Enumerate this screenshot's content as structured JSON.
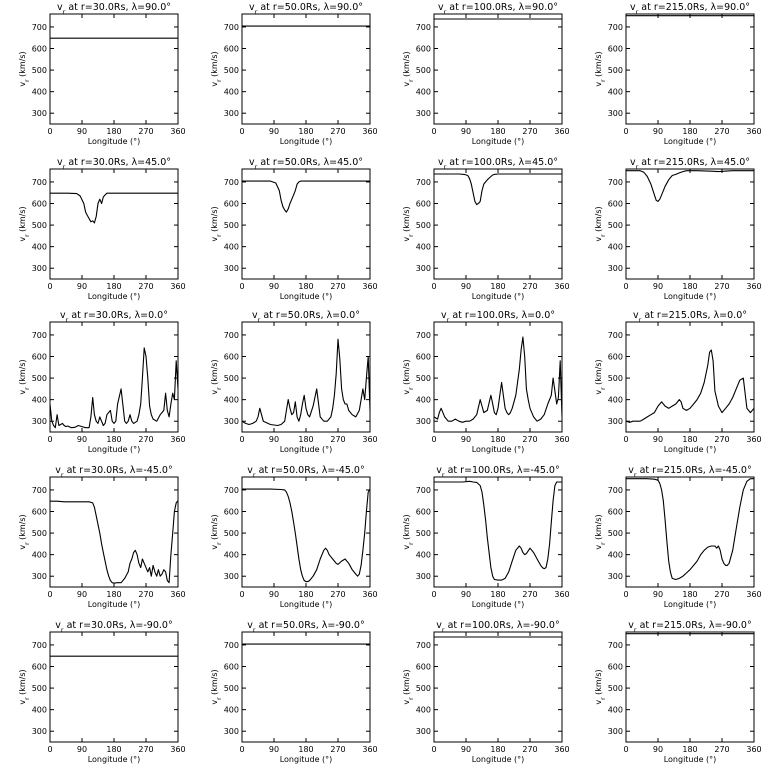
{
  "chart_data": [
    {
      "type": "line",
      "title": "v_r at r=30.0Rs, λ=90.0°",
      "r": "30.0",
      "lat": "90.0",
      "xlabel": "Longitude (°)",
      "ylabel": "v_r (km/s)",
      "xlim": [
        0,
        360
      ],
      "ylim": [
        250,
        760
      ],
      "x": [
        0,
        360
      ],
      "y": [
        648,
        648
      ]
    },
    {
      "type": "line",
      "title": "v_r at r=50.0Rs, λ=90.0°",
      "r": "50.0",
      "lat": "90.0",
      "xlabel": "Longitude (°)",
      "ylabel": "v_r (km/s)",
      "xlim": [
        0,
        360
      ],
      "ylim": [
        250,
        760
      ],
      "x": [
        0,
        360
      ],
      "y": [
        704,
        704
      ]
    },
    {
      "type": "line",
      "title": "v_r at r=100.0Rs, λ=90.0°",
      "r": "100.0",
      "lat": "90.0",
      "xlabel": "Longitude (°)",
      "ylabel": "v_r (km/s)",
      "xlim": [
        0,
        360
      ],
      "ylim": [
        250,
        760
      ],
      "x": [
        0,
        360
      ],
      "y": [
        737,
        737
      ]
    },
    {
      "type": "line",
      "title": "v_r at r=215.0Rs, λ=90.0°",
      "r": "215.0",
      "lat": "90.0",
      "xlabel": "Longitude (°)",
      "ylabel": "v_r (km/s)",
      "xlim": [
        0,
        360
      ],
      "ylim": [
        250,
        760
      ],
      "x": [
        0,
        360
      ],
      "y": [
        752,
        752
      ]
    },
    {
      "type": "line",
      "title": "v_r at r=30.0Rs, λ=45.0°",
      "r": "30.0",
      "lat": "45.0",
      "xlabel": "Longitude (°)",
      "ylabel": "v_r (km/s)",
      "xlim": [
        0,
        360
      ],
      "ylim": [
        250,
        760
      ],
      "x": [
        0,
        50,
        75,
        85,
        95,
        100,
        105,
        110,
        115,
        120,
        125,
        130,
        135,
        140,
        145,
        150,
        155,
        160,
        165,
        170,
        180,
        190,
        360
      ],
      "y": [
        648,
        648,
        646,
        635,
        600,
        560,
        545,
        530,
        515,
        520,
        510,
        540,
        600,
        620,
        600,
        630,
        640,
        648,
        648,
        648,
        648,
        648,
        648
      ]
    },
    {
      "type": "line",
      "title": "v_r at r=50.0Rs, λ=45.0°",
      "r": "50.0",
      "lat": "45.0",
      "xlabel": "Longitude (°)",
      "ylabel": "v_r (km/s)",
      "xlim": [
        0,
        360
      ],
      "ylim": [
        250,
        760
      ],
      "x": [
        0,
        80,
        95,
        105,
        110,
        115,
        120,
        125,
        130,
        135,
        140,
        145,
        150,
        155,
        160,
        165,
        170,
        180,
        360
      ],
      "y": [
        704,
        704,
        695,
        660,
        615,
        585,
        570,
        560,
        575,
        600,
        620,
        640,
        660,
        690,
        700,
        704,
        704,
        704,
        704
      ]
    },
    {
      "type": "line",
      "title": "v_r at r=100.0Rs, λ=45.0°",
      "r": "100.0",
      "lat": "45.0",
      "xlabel": "Longitude (°)",
      "ylabel": "v_r (km/s)",
      "xlim": [
        0,
        360
      ],
      "ylim": [
        250,
        760
      ],
      "x": [
        0,
        70,
        85,
        95,
        100,
        105,
        110,
        115,
        120,
        125,
        130,
        135,
        140,
        145,
        150,
        155,
        160,
        165,
        170,
        180,
        190,
        360
      ],
      "y": [
        737,
        737,
        735,
        730,
        715,
        690,
        650,
        610,
        595,
        600,
        610,
        660,
        690,
        700,
        710,
        718,
        725,
        732,
        735,
        737,
        737,
        737
      ]
    },
    {
      "type": "line",
      "title": "v_r at r=215.0Rs, λ=45.0°",
      "r": "215.0",
      "lat": "45.0",
      "xlabel": "Longitude (°)",
      "ylabel": "v_r (km/s)",
      "xlim": [
        0,
        360
      ],
      "ylim": [
        250,
        760
      ],
      "x": [
        0,
        40,
        50,
        60,
        70,
        80,
        85,
        90,
        95,
        100,
        110,
        120,
        130,
        140,
        150,
        160,
        170,
        180,
        200,
        240,
        260,
        300,
        360
      ],
      "y": [
        752,
        752,
        745,
        725,
        690,
        640,
        615,
        610,
        620,
        640,
        680,
        710,
        730,
        735,
        742,
        748,
        752,
        752,
        752,
        750,
        748,
        752,
        752
      ]
    },
    {
      "type": "line",
      "title": "v_r at r=30.0Rs, λ=0.0°",
      "r": "30.0",
      "lat": "0.0",
      "xlabel": "Longitude (°)",
      "ylabel": "v_r (km/s)",
      "xlim": [
        0,
        360
      ],
      "ylim": [
        250,
        760
      ],
      "x": [
        0,
        5,
        10,
        15,
        20,
        25,
        30,
        35,
        40,
        45,
        50,
        60,
        70,
        80,
        90,
        100,
        110,
        115,
        120,
        125,
        130,
        135,
        140,
        150,
        155,
        160,
        170,
        175,
        180,
        185,
        190,
        200,
        210,
        215,
        220,
        225,
        230,
        235,
        240,
        245,
        250,
        255,
        260,
        265,
        270,
        275,
        280,
        285,
        290,
        300,
        310,
        320,
        325,
        330,
        335,
        340,
        345,
        350,
        355,
        360
      ],
      "y": [
        380,
        300,
        280,
        270,
        330,
        280,
        285,
        290,
        280,
        275,
        278,
        270,
        272,
        280,
        275,
        270,
        270,
        320,
        410,
        330,
        300,
        290,
        320,
        280,
        290,
        330,
        350,
        300,
        290,
        300,
        380,
        450,
        300,
        290,
        300,
        330,
        300,
        290,
        295,
        300,
        330,
        380,
        500,
        640,
        600,
        500,
        370,
        330,
        310,
        300,
        330,
        350,
        430,
        350,
        320,
        380,
        430,
        400,
        580,
        450
      ]
    },
    {
      "type": "line",
      "title": "v_r at r=50.0Rs, λ=0.0°",
      "r": "50.0",
      "lat": "0.0",
      "xlabel": "Longitude (°)",
      "ylabel": "v_r (km/s)",
      "xlim": [
        0,
        360
      ],
      "ylim": [
        250,
        760
      ],
      "x": [
        0,
        10,
        20,
        30,
        40,
        45,
        50,
        60,
        80,
        100,
        110,
        120,
        125,
        130,
        135,
        140,
        145,
        150,
        155,
        160,
        165,
        170,
        175,
        180,
        185,
        190,
        200,
        210,
        220,
        230,
        240,
        250,
        255,
        260,
        265,
        270,
        275,
        280,
        285,
        290,
        295,
        300,
        310,
        320,
        330,
        340,
        345,
        350,
        355,
        360
      ],
      "y": [
        300,
        290,
        285,
        290,
        300,
        320,
        360,
        300,
        285,
        280,
        285,
        300,
        350,
        400,
        360,
        330,
        340,
        390,
        320,
        300,
        330,
        380,
        420,
        360,
        330,
        320,
        370,
        450,
        320,
        300,
        300,
        320,
        360,
        420,
        520,
        680,
        590,
        450,
        400,
        380,
        380,
        350,
        330,
        320,
        350,
        450,
        400,
        500,
        600,
        350
      ]
    },
    {
      "type": "line",
      "title": "v_r at r=100.0Rs, λ=0.0°",
      "r": "100.0",
      "lat": "0.0",
      "xlabel": "Longitude (°)",
      "ylabel": "v_r (km/s)",
      "xlim": [
        0,
        360
      ],
      "ylim": [
        250,
        760
      ],
      "x": [
        0,
        10,
        15,
        20,
        30,
        40,
        50,
        60,
        70,
        80,
        90,
        100,
        110,
        120,
        130,
        135,
        140,
        150,
        160,
        165,
        170,
        175,
        180,
        190,
        200,
        205,
        210,
        215,
        220,
        230,
        240,
        245,
        250,
        255,
        260,
        265,
        270,
        280,
        290,
        300,
        310,
        320,
        330,
        335,
        340,
        345,
        350,
        355,
        360
      ],
      "y": [
        320,
        310,
        340,
        360,
        320,
        300,
        300,
        310,
        300,
        295,
        300,
        300,
        310,
        330,
        400,
        370,
        340,
        350,
        420,
        380,
        340,
        330,
        360,
        480,
        360,
        340,
        330,
        340,
        360,
        420,
        540,
        630,
        690,
        600,
        450,
        400,
        360,
        320,
        300,
        310,
        330,
        380,
        420,
        500,
        440,
        380,
        410,
        580,
        320
      ]
    },
    {
      "type": "line",
      "title": "v_r at r=215.0Rs, λ=0.0°",
      "r": "215.0",
      "lat": "0.0",
      "xlabel": "Longitude (°)",
      "ylabel": "v_r (km/s)",
      "xlim": [
        0,
        360
      ],
      "ylim": [
        250,
        760
      ],
      "x": [
        0,
        10,
        20,
        30,
        40,
        50,
        60,
        70,
        80,
        90,
        100,
        110,
        120,
        130,
        140,
        150,
        155,
        160,
        170,
        180,
        190,
        200,
        210,
        220,
        230,
        235,
        240,
        245,
        250,
        260,
        270,
        280,
        290,
        300,
        310,
        320,
        330,
        335,
        340,
        350,
        360
      ],
      "y": [
        300,
        295,
        300,
        300,
        300,
        310,
        320,
        330,
        340,
        370,
        390,
        370,
        360,
        370,
        380,
        400,
        390,
        360,
        350,
        360,
        380,
        400,
        430,
        480,
        560,
        620,
        630,
        580,
        440,
        370,
        340,
        360,
        380,
        410,
        450,
        490,
        500,
        430,
        360,
        340,
        360
      ]
    },
    {
      "type": "line",
      "title": "v_r at r=30.0Rs, λ=-45.0°",
      "r": "30.0",
      "lat": "-45.0",
      "xlabel": "Longitude (°)",
      "ylabel": "v_r (km/s)",
      "xlim": [
        0,
        360
      ],
      "ylim": [
        250,
        760
      ],
      "x": [
        0,
        20,
        40,
        60,
        80,
        100,
        110,
        120,
        125,
        130,
        135,
        140,
        145,
        150,
        155,
        160,
        165,
        170,
        175,
        180,
        190,
        200,
        210,
        220,
        225,
        230,
        235,
        240,
        245,
        250,
        255,
        260,
        265,
        270,
        275,
        280,
        285,
        290,
        295,
        300,
        305,
        310,
        315,
        320,
        325,
        330,
        335,
        340,
        345,
        350,
        355,
        360
      ],
      "y": [
        648,
        648,
        645,
        645,
        645,
        645,
        645,
        640,
        620,
        580,
        540,
        500,
        450,
        410,
        370,
        330,
        300,
        280,
        270,
        268,
        270,
        270,
        290,
        320,
        360,
        380,
        410,
        420,
        400,
        360,
        340,
        380,
        360,
        340,
        320,
        340,
        300,
        350,
        320,
        300,
        330,
        300,
        310,
        330,
        320,
        280,
        270,
        400,
        500,
        600,
        640,
        650
      ]
    },
    {
      "type": "line",
      "title": "v_r at r=50.0Rs, λ=-45.0°",
      "r": "50.0",
      "lat": "-45.0",
      "xlabel": "Longitude (°)",
      "ylabel": "v_r (km/s)",
      "xlim": [
        0,
        360
      ],
      "ylim": [
        250,
        760
      ],
      "x": [
        0,
        40,
        80,
        110,
        120,
        125,
        130,
        135,
        140,
        145,
        150,
        155,
        160,
        165,
        170,
        175,
        180,
        185,
        190,
        200,
        210,
        220,
        230,
        235,
        240,
        245,
        250,
        255,
        260,
        265,
        270,
        280,
        290,
        300,
        310,
        315,
        320,
        325,
        330,
        335,
        340,
        345,
        350,
        355,
        360
      ],
      "y": [
        704,
        704,
        704,
        702,
        700,
        690,
        670,
        640,
        600,
        550,
        500,
        440,
        380,
        330,
        300,
        280,
        275,
        275,
        280,
        300,
        330,
        380,
        420,
        430,
        420,
        400,
        390,
        380,
        370,
        360,
        355,
        370,
        380,
        360,
        330,
        320,
        310,
        300,
        310,
        350,
        420,
        500,
        600,
        690,
        704
      ]
    },
    {
      "type": "line",
      "title": "v_r at r=100.0Rs, λ=-45.0°",
      "r": "100.0",
      "lat": "-45.0",
      "xlabel": "Longitude (°)",
      "ylabel": "v_r (km/s)",
      "xlim": [
        0,
        360
      ],
      "ylim": [
        250,
        760
      ],
      "x": [
        0,
        40,
        80,
        100,
        110,
        120,
        130,
        135,
        140,
        145,
        150,
        155,
        160,
        165,
        170,
        180,
        190,
        200,
        210,
        220,
        230,
        240,
        245,
        250,
        255,
        260,
        270,
        280,
        290,
        300,
        305,
        310,
        315,
        320,
        325,
        330,
        335,
        340,
        345,
        350,
        355,
        360
      ],
      "y": [
        737,
        737,
        737,
        740,
        737,
        735,
        720,
        690,
        630,
        560,
        480,
        410,
        340,
        300,
        285,
        282,
        282,
        290,
        320,
        370,
        420,
        440,
        430,
        410,
        400,
        405,
        430,
        410,
        380,
        350,
        340,
        335,
        340,
        380,
        450,
        550,
        650,
        720,
        737,
        737,
        737,
        737
      ]
    },
    {
      "type": "line",
      "title": "v_r at r=215.0Rs, λ=-45.0°",
      "r": "215.0",
      "lat": "-45.0",
      "xlabel": "Longitude (°)",
      "ylabel": "v_r (km/s)",
      "xlim": [
        0,
        360
      ],
      "ylim": [
        250,
        760
      ],
      "x": [
        0,
        30,
        60,
        80,
        90,
        95,
        100,
        105,
        110,
        115,
        120,
        125,
        130,
        140,
        150,
        160,
        170,
        180,
        190,
        200,
        210,
        220,
        230,
        240,
        250,
        255,
        260,
        265,
        270,
        275,
        280,
        285,
        290,
        300,
        310,
        320,
        330,
        340,
        350,
        360
      ],
      "y": [
        752,
        752,
        752,
        750,
        745,
        730,
        700,
        650,
        560,
        460,
        370,
        320,
        290,
        285,
        290,
        300,
        315,
        330,
        350,
        370,
        400,
        420,
        435,
        440,
        440,
        430,
        440,
        420,
        380,
        360,
        350,
        350,
        360,
        420,
        520,
        620,
        700,
        740,
        752,
        752
      ]
    },
    {
      "type": "line",
      "title": "v_r at r=30.0Rs, λ=-90.0°",
      "r": "30.0",
      "lat": "-90.0",
      "xlabel": "Longitude (°)",
      "ylabel": "v_r (km/s)",
      "xlim": [
        0,
        360
      ],
      "ylim": [
        250,
        760
      ],
      "x": [
        0,
        360
      ],
      "y": [
        648,
        648
      ]
    },
    {
      "type": "line",
      "title": "v_r at r=50.0Rs, λ=-90.0°",
      "r": "50.0",
      "lat": "-90.0",
      "xlabel": "Longitude (°)",
      "ylabel": "v_r (km/s)",
      "xlim": [
        0,
        360
      ],
      "ylim": [
        250,
        760
      ],
      "x": [
        0,
        360
      ],
      "y": [
        704,
        704
      ]
    },
    {
      "type": "line",
      "title": "v_r at r=100.0Rs, λ=-90.0°",
      "r": "100.0",
      "lat": "-90.0",
      "xlabel": "Longitude (°)",
      "ylabel": "v_r (km/s)",
      "xlim": [
        0,
        360
      ],
      "ylim": [
        250,
        760
      ],
      "x": [
        0,
        360
      ],
      "y": [
        737,
        737
      ]
    },
    {
      "type": "line",
      "title": "v_r at r=215.0Rs, λ=-90.0°",
      "r": "215.0",
      "lat": "-90.0",
      "xlabel": "Longitude (°)",
      "ylabel": "v_r (km/s)",
      "xlim": [
        0,
        360
      ],
      "ylim": [
        250,
        760
      ],
      "x": [
        0,
        360
      ],
      "y": [
        752,
        752
      ]
    }
  ],
  "axes": {
    "xticks": [
      0,
      90,
      180,
      270,
      360
    ],
    "yticks": [
      300,
      400,
      500,
      600,
      700
    ],
    "xlabel_text": "Longitude",
    "xlabel_unit": "(°)",
    "ylabel_var": "v",
    "ylabel_sub": "r",
    "ylabel_unit": "(km/s)"
  },
  "style": {
    "line_color": "#000000",
    "axis_color": "#000000",
    "background": "#ffffff"
  }
}
